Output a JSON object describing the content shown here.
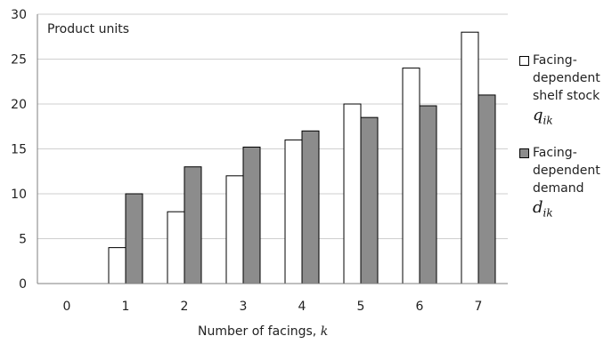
{
  "chart_data": {
    "type": "bar",
    "unit_label": "Product units",
    "xlabel": "Number of facings, ",
    "xlabel_variable": "k",
    "categories": [
      "0",
      "1",
      "2",
      "3",
      "4",
      "5",
      "6",
      "7"
    ],
    "ylim": [
      0,
      30
    ],
    "yticks": [
      "0",
      "5",
      "10",
      "15",
      "20",
      "25",
      "30"
    ],
    "grid": true,
    "legend_position": "right",
    "series": [
      {
        "name": "Facing-dependent shelf stock",
        "symbol": "q",
        "symbol_sub": "ik",
        "color": "#ffffff",
        "values": [
          0,
          4,
          8,
          12,
          16,
          20,
          24,
          28
        ]
      },
      {
        "name": "Facing-dependent demand",
        "symbol": "d",
        "symbol_sub": "ik",
        "color": "#8c8c8c",
        "values": [
          0,
          10,
          13,
          15.2,
          17,
          18.5,
          19.8,
          21
        ]
      }
    ]
  },
  "legend": {
    "items": [
      {
        "lines": [
          "Facing-",
          "dependent",
          "shelf stock"
        ],
        "symbol": "q",
        "symbol_sub": "ik"
      },
      {
        "lines": [
          "Facing-",
          "dependent",
          "demand"
        ],
        "symbol": "d",
        "symbol_sub": "ik"
      }
    ]
  }
}
